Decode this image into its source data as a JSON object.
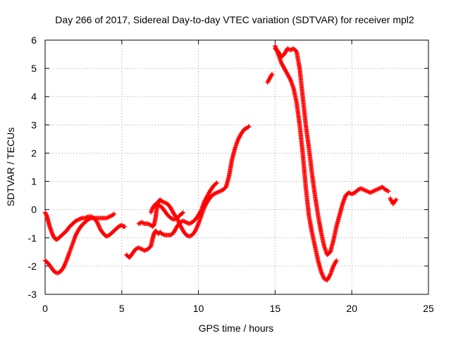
{
  "chart_data": {
    "type": "scatter",
    "title": "Day 266 of 2017, Sidereal Day-to-day VTEC variation (SDTVAR) for receiver mpl2",
    "xlabel": "GPS time / hours",
    "ylabel": "SDTVAR / TECUs",
    "xlim": [
      0,
      25
    ],
    "ylim": [
      -3,
      6
    ],
    "xticks": [
      "0",
      "5",
      "10",
      "15",
      "20",
      "25"
    ],
    "yticks": [
      "-3",
      "-2",
      "-1",
      "0",
      "1",
      "2",
      "3",
      "4",
      "5",
      "6"
    ],
    "grid": true,
    "marker": "plus",
    "color": "#ff0000",
    "series": [
      {
        "x": [
          0.0,
          0.1,
          0.2,
          0.3,
          0.4,
          0.5,
          0.6,
          0.7,
          0.8,
          0.9,
          1.0,
          1.2,
          1.4,
          1.6,
          1.8,
          2.0,
          2.2,
          2.4,
          2.6,
          2.8,
          3.0,
          3.2,
          3.4,
          3.6,
          3.8,
          4.0,
          4.2,
          4.4,
          4.6,
          4.8,
          5.0,
          5.1,
          5.2
        ],
        "y": [
          -0.1,
          -0.2,
          -0.4,
          -0.6,
          -0.75,
          -0.9,
          -1.0,
          -1.05,
          -1.05,
          -1.0,
          -0.95,
          -0.85,
          -0.75,
          -0.6,
          -0.5,
          -0.4,
          -0.35,
          -0.3,
          -0.3,
          -0.25,
          -0.25,
          -0.3,
          -0.45,
          -0.7,
          -0.85,
          -0.95,
          -0.9,
          -0.8,
          -0.7,
          -0.6,
          -0.55,
          -0.6,
          -0.6
        ]
      },
      {
        "x": [
          0.0,
          0.2,
          0.4,
          0.6,
          0.8,
          1.0,
          1.2,
          1.4,
          1.6,
          1.8,
          2.0,
          2.2,
          2.4,
          2.6,
          2.8,
          3.0,
          3.2,
          3.4,
          3.6,
          3.8,
          4.0,
          4.2,
          4.4,
          4.5
        ],
        "y": [
          -1.8,
          -1.9,
          -2.05,
          -2.2,
          -2.25,
          -2.2,
          -2.05,
          -1.8,
          -1.5,
          -1.2,
          -0.9,
          -0.7,
          -0.55,
          -0.45,
          -0.35,
          -0.3,
          -0.3,
          -0.3,
          -0.3,
          -0.3,
          -0.3,
          -0.25,
          -0.2,
          -0.15
        ]
      },
      {
        "x": [
          5.3,
          5.5,
          5.7,
          5.9,
          6.1,
          6.3,
          6.5,
          6.7,
          6.9,
          7.0,
          7.1,
          7.2,
          7.3,
          7.4,
          7.5,
          7.6,
          7.8,
          8.0,
          8.2,
          8.4,
          8.6,
          8.8,
          9.0,
          9.2,
          9.4,
          9.6,
          9.8,
          10.0,
          10.2,
          10.4,
          10.6,
          10.8,
          11.0,
          11.2
        ],
        "y": [
          -1.6,
          -1.7,
          -1.55,
          -1.4,
          -1.35,
          -1.4,
          -1.45,
          -1.4,
          -1.3,
          -1.05,
          -0.85,
          -0.75,
          -0.8,
          -0.85,
          -0.8,
          -0.85,
          -0.9,
          -0.9,
          -0.9,
          -0.8,
          -0.6,
          -0.45,
          -0.4,
          -0.45,
          -0.5,
          -0.45,
          -0.35,
          -0.2,
          0.0,
          0.3,
          0.5,
          0.7,
          0.85,
          0.95
        ]
      },
      {
        "x": [
          6.1,
          6.3,
          6.5,
          6.7,
          6.9,
          7.0,
          7.1,
          7.2,
          7.3,
          7.4,
          7.5,
          7.6,
          7.8,
          8.0,
          8.2,
          8.4,
          8.6,
          8.8,
          9.0,
          9.2,
          9.4,
          9.6,
          9.8,
          10.0,
          10.2,
          10.4,
          10.6,
          10.8,
          11.0,
          11.2,
          11.4,
          11.6,
          11.8,
          12.0,
          12.2,
          12.4,
          12.6,
          12.8,
          13.0,
          13.2,
          13.3
        ],
        "y": [
          -0.5,
          -0.45,
          -0.5,
          -0.5,
          -0.55,
          -0.6,
          -0.55,
          -0.3,
          0.1,
          0.3,
          0.35,
          0.3,
          0.25,
          0.2,
          0.05,
          -0.15,
          -0.3,
          -0.55,
          -0.75,
          -0.9,
          -0.95,
          -0.9,
          -0.75,
          -0.5,
          -0.2,
          0.1,
          0.3,
          0.45,
          0.55,
          0.6,
          0.65,
          0.7,
          0.8,
          1.2,
          1.8,
          2.2,
          2.5,
          2.7,
          2.85,
          2.9,
          2.95
        ]
      },
      {
        "x": [
          6.9,
          7.0,
          7.2,
          7.4,
          7.6,
          7.8,
          8.0,
          8.2,
          8.4,
          8.6,
          8.8,
          9.0
        ],
        "y": [
          -0.1,
          0.05,
          0.2,
          0.15,
          0.1,
          -0.05,
          -0.2,
          -0.3,
          -0.35,
          -0.3,
          -0.2,
          -0.1
        ]
      },
      {
        "x": [
          14.5,
          14.6,
          14.7,
          14.8
        ],
        "y": [
          4.5,
          4.6,
          4.7,
          4.8
        ]
      },
      {
        "x": [
          15.0,
          15.2,
          15.4,
          15.6,
          15.8,
          16.0,
          16.2,
          16.4,
          16.6,
          16.8,
          17.0,
          17.2,
          17.4,
          17.6,
          17.8,
          18.0,
          18.2,
          18.4,
          18.6,
          18.8,
          19.0
        ],
        "y": [
          5.8,
          5.5,
          5.2,
          5.0,
          4.8,
          4.6,
          4.3,
          3.8,
          3.0,
          2.0,
          0.8,
          -0.2,
          -0.8,
          -1.3,
          -1.8,
          -2.2,
          -2.45,
          -2.5,
          -2.3,
          -2.0,
          -1.8
        ]
      },
      {
        "x": [
          15.0,
          15.2,
          15.4,
          15.6,
          15.8,
          16.0,
          16.2,
          16.4,
          16.6,
          16.8,
          17.0,
          17.2,
          17.4,
          17.6,
          17.8,
          18.0,
          18.2,
          18.4,
          18.6,
          18.8,
          19.0,
          19.2,
          19.4,
          19.6,
          19.8,
          20.0,
          20.2,
          20.4,
          20.6,
          20.8,
          21.0,
          21.2,
          21.4,
          21.6,
          21.8,
          22.0,
          22.2,
          22.4
        ],
        "y": [
          5.7,
          5.6,
          5.4,
          5.5,
          5.7,
          5.65,
          5.7,
          5.6,
          5.0,
          4.0,
          3.0,
          2.2,
          1.3,
          0.5,
          -0.2,
          -0.8,
          -1.3,
          -1.6,
          -1.5,
          -1.1,
          -0.6,
          -0.2,
          0.2,
          0.5,
          0.6,
          0.55,
          0.6,
          0.7,
          0.75,
          0.7,
          0.65,
          0.6,
          0.65,
          0.7,
          0.75,
          0.8,
          0.7,
          0.65
        ]
      },
      {
        "x": [
          22.5,
          22.6,
          22.7,
          22.8,
          22.9
        ],
        "y": [
          0.4,
          0.3,
          0.2,
          0.3,
          0.35
        ]
      }
    ]
  }
}
